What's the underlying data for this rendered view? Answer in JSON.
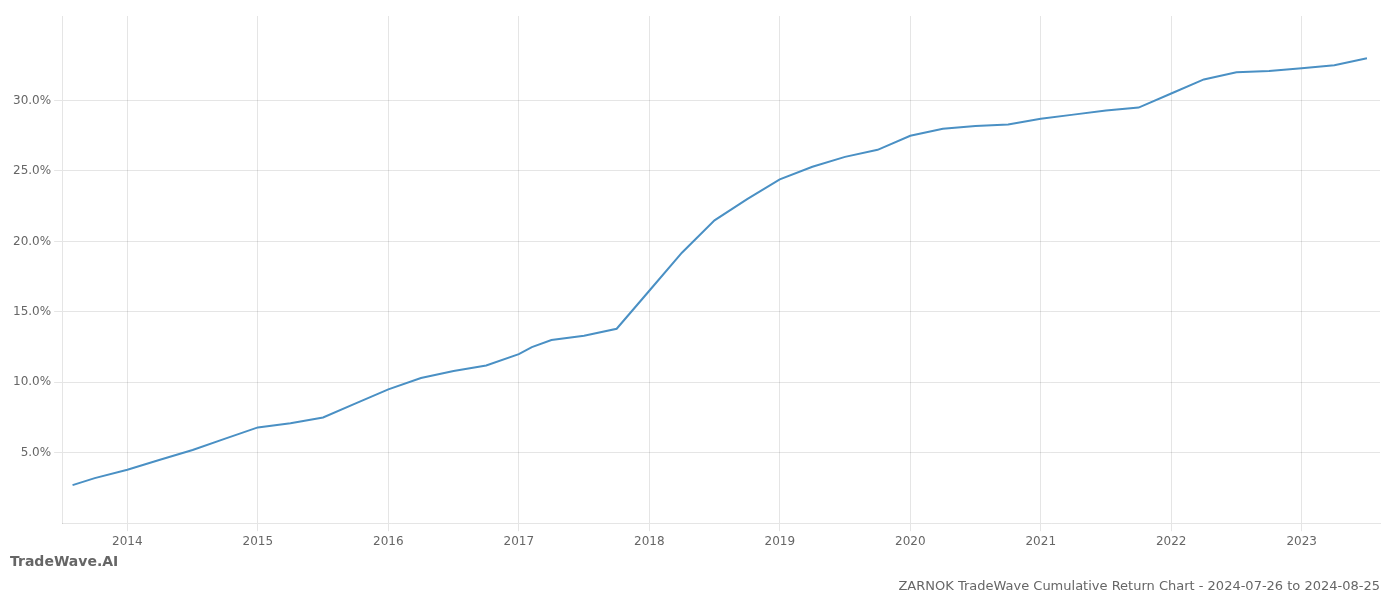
{
  "chart_data": {
    "type": "line",
    "title": "ZARNOK TradeWave Cumulative Return Chart - 2024-07-26 to 2024-08-25",
    "annotations": [
      "TradeWave.AI"
    ],
    "x": [
      2013.58,
      2013.75,
      2014.0,
      2014.25,
      2014.5,
      2014.75,
      2015.0,
      2015.25,
      2015.5,
      2015.75,
      2016.0,
      2016.25,
      2016.5,
      2016.75,
      2017.0,
      2017.1,
      2017.25,
      2017.5,
      2017.75,
      2018.0,
      2018.25,
      2018.5,
      2018.75,
      2019.0,
      2019.25,
      2019.5,
      2019.75,
      2020.0,
      2020.25,
      2020.5,
      2020.75,
      2021.0,
      2021.25,
      2021.5,
      2021.75,
      2022.0,
      2022.25,
      2022.5,
      2022.75,
      2023.0,
      2023.25,
      2023.5
    ],
    "values": [
      2.7,
      3.2,
      3.8,
      4.5,
      5.2,
      6.0,
      6.8,
      7.1,
      7.5,
      8.5,
      9.5,
      10.3,
      10.8,
      11.2,
      12.0,
      12.5,
      13.0,
      13.3,
      13.8,
      16.5,
      19.2,
      21.5,
      23.0,
      24.4,
      25.3,
      26.0,
      26.5,
      27.5,
      28.0,
      28.2,
      28.3,
      28.7,
      29.0,
      29.3,
      29.5,
      30.5,
      31.5,
      32.0,
      32.1,
      32.3,
      32.5,
      33.0
    ],
    "color": "#4a90c4",
    "xlim": [
      2013.5,
      2023.6
    ],
    "xticks": [
      2014,
      2015,
      2016,
      2017,
      2018,
      2019,
      2020,
      2021,
      2022,
      2023
    ],
    "ylim": [
      0,
      36
    ],
    "yticks": [
      {
        "value": 5.0,
        "label": "5.0%"
      },
      {
        "value": 10.0,
        "label": "10.0%"
      },
      {
        "value": 15.0,
        "label": "15.0%"
      },
      {
        "value": 20.0,
        "label": "20.0%"
      },
      {
        "value": 25.0,
        "label": "25.0%"
      },
      {
        "value": 30.0,
        "label": "30.0%"
      }
    ],
    "grid": true
  }
}
